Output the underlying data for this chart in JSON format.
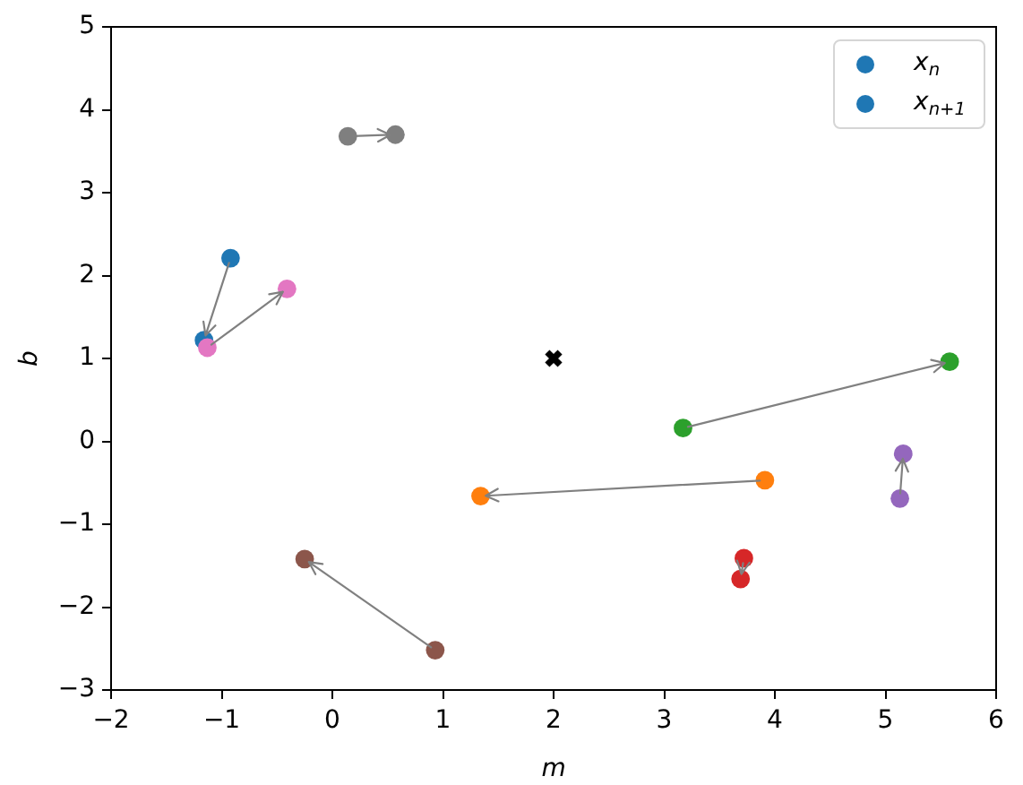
{
  "chart_data": {
    "type": "scatter",
    "xlabel": "m",
    "ylabel": "b",
    "xlim": [
      -2,
      6
    ],
    "ylim": [
      -3,
      5
    ],
    "xticks": [
      -2,
      -1,
      0,
      1,
      2,
      3,
      4,
      5,
      6
    ],
    "yticks": [
      -3,
      -2,
      -1,
      0,
      1,
      2,
      3,
      4,
      5
    ],
    "grid": false,
    "legend": "top right",
    "marker": "circle",
    "series": [
      {
        "name": "x$_{n}$",
        "x": [
          -0.92,
          3.91,
          3.17,
          3.72,
          5.13,
          0.93,
          -1.13,
          0.14
        ],
        "values": [
          2.21,
          -0.47,
          0.16,
          -1.41,
          -0.69,
          -2.52,
          1.13,
          3.68
        ],
        "colors": [
          "#1f77b4",
          "#ff7f0e",
          "#2ca02c",
          "#d62728",
          "#9467bd",
          "#8c564b",
          "#e377c2",
          "#7f7f7f"
        ]
      },
      {
        "name": "x$_{n+1}$",
        "x": [
          -1.16,
          1.34,
          5.58,
          3.69,
          5.16,
          -0.25,
          -0.41,
          0.57
        ],
        "values": [
          1.22,
          -0.66,
          0.96,
          -1.66,
          -0.15,
          -1.42,
          1.84,
          3.7
        ],
        "colors": [
          "#1f77b4",
          "#ff7f0e",
          "#2ca02c",
          "#d62728",
          "#9467bd",
          "#8c564b",
          "#e377c2",
          "#7f7f7f"
        ]
      },
      {
        "x": [
          2
        ],
        "values": [
          1
        ],
        "color": "#000000",
        "marker": "cross"
      }
    ]
  }
}
